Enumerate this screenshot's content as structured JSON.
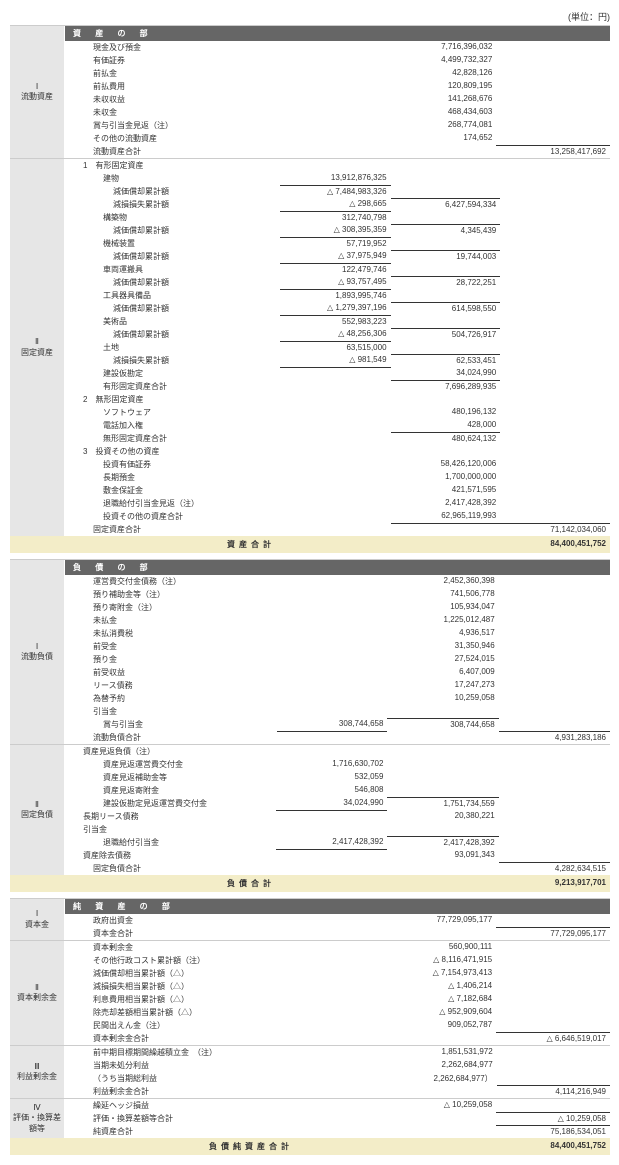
{
  "unit": "(単位：円)",
  "sections": {
    "assets_header": "資 産 の 部",
    "liab_header": "負 債 の 部",
    "net_header": "純 資 産 の 部",
    "current_assets": {
      "num": "Ⅰ",
      "label": "流動資産"
    },
    "fixed_assets": {
      "num": "Ⅱ",
      "label": "固定資産"
    },
    "current_liab": {
      "num": "Ⅰ",
      "label": "流動負債"
    },
    "fixed_liab": {
      "num": "Ⅱ",
      "label": "固定負債"
    },
    "capital": {
      "num": "Ⅰ",
      "label": "資本金"
    },
    "capital_surplus": {
      "num": "Ⅱ",
      "label": "資本剰余金"
    },
    "retained": {
      "num": "Ⅲ",
      "label": "利益剰余金"
    },
    "valuation": {
      "num": "Ⅳ",
      "label": "評価・換算差額等"
    }
  },
  "rows_assets_current": [
    {
      "l": "現金及び預金",
      "c2": "7,716,396,032"
    },
    {
      "l": "有価証券",
      "c2": "4,499,732,327"
    },
    {
      "l": "前払金",
      "c2": "42,828,126"
    },
    {
      "l": "前払費用",
      "c2": "120,809,195"
    },
    {
      "l": "未収収益",
      "c2": "141,268,676"
    },
    {
      "l": "未収金",
      "c2": "468,434,603"
    },
    {
      "l": "賞与引当金見返（注）",
      "c2": "268,774,081"
    },
    {
      "l": "その他の流動資産",
      "c2": "174,652"
    },
    {
      "l": "流動資産合計",
      "c3": "13,258,417,692",
      "ind": 1,
      "sub3": true
    }
  ],
  "rows_assets_fixed": [
    {
      "l": "1　有形固定資産",
      "ind": 0
    },
    {
      "l": "建物",
      "c1": "13,912,876,325",
      "ind": 2
    },
    {
      "l": "減価償却累計額",
      "c1": "△ 7,484,983,326",
      "ind": 3,
      "top1": true
    },
    {
      "l": "減損損失累計額",
      "c1": "△ 298,665",
      "c2": "6,427,594,334",
      "ind": 3,
      "u1": true,
      "sub2": true
    },
    {
      "l": "構築物",
      "c1": "312,740,798",
      "ind": 2
    },
    {
      "l": "減価償却累計額",
      "c1": "△ 308,395,359",
      "c2": "4,345,439",
      "ind": 3,
      "u1": true,
      "sub2": true
    },
    {
      "l": "機械装置",
      "c1": "57,719,952",
      "ind": 2
    },
    {
      "l": "減価償却累計額",
      "c1": "△ 37,975,949",
      "c2": "19,744,003",
      "ind": 3,
      "u1": true,
      "sub2": true
    },
    {
      "l": "車両運搬具",
      "c1": "122,479,746",
      "ind": 2
    },
    {
      "l": "減価償却累計額",
      "c1": "△ 93,757,495",
      "c2": "28,722,251",
      "ind": 3,
      "u1": true,
      "sub2": true
    },
    {
      "l": "工具器具備品",
      "c1": "1,893,995,746",
      "ind": 2
    },
    {
      "l": "減価償却累計額",
      "c1": "△ 1,279,397,196",
      "c2": "614,598,550",
      "ind": 3,
      "u1": true,
      "sub2": true
    },
    {
      "l": "美術品",
      "c1": "552,983,223",
      "ind": 2
    },
    {
      "l": "減価償却累計額",
      "c1": "△ 48,256,306",
      "c2": "504,726,917",
      "ind": 3,
      "u1": true,
      "sub2": true
    },
    {
      "l": "土地",
      "c1": "63,515,000",
      "ind": 2
    },
    {
      "l": "減損損失累計額",
      "c1": "△ 981,549",
      "c2": "62,533,451",
      "ind": 3,
      "u1": true,
      "sub2": true
    },
    {
      "l": "建設仮勘定",
      "c2": "34,024,990",
      "ind": 2
    },
    {
      "l": "有形固定資産合計",
      "c2": "7,696,289,935",
      "ind": 2,
      "sub2": true
    },
    {
      "l": "2　無形固定資産",
      "ind": 0
    },
    {
      "l": "ソフトウェア",
      "c2": "480,196,132",
      "ind": 2
    },
    {
      "l": "電話加入権",
      "c2": "428,000",
      "ind": 2
    },
    {
      "l": "無形固定資産合計",
      "c2": "480,624,132",
      "ind": 2,
      "sub2": true
    },
    {
      "l": "3　投資その他の資産",
      "ind": 0
    },
    {
      "l": "投資有価証券",
      "c2": "58,426,120,006",
      "ind": 2
    },
    {
      "l": "長期預金",
      "c2": "1,700,000,000",
      "ind": 2
    },
    {
      "l": "敷金保証金",
      "c2": "421,571,595",
      "ind": 2
    },
    {
      "l": "退職給付引当金見返（注）",
      "c2": "2,417,428,392",
      "ind": 2
    },
    {
      "l": "投資その他の資産合計",
      "c2": "62,965,119,993",
      "ind": 2,
      "u2": true
    },
    {
      "l": "固定資産合計",
      "c3": "71,142,034,060",
      "ind": 1,
      "sub3": true
    }
  ],
  "total_assets": {
    "l": "資産合計",
    "v": "84,400,451,752"
  },
  "rows_liab_current": [
    {
      "l": "運営費交付金債務（注）",
      "c2": "2,452,360,398"
    },
    {
      "l": "預り補助金等（注）",
      "c2": "741,506,778"
    },
    {
      "l": "預り寄附金（注）",
      "c2": "105,934,047"
    },
    {
      "l": "未払金",
      "c2": "1,225,012,487"
    },
    {
      "l": "未払消費税",
      "c2": "4,936,517"
    },
    {
      "l": "前受金",
      "c2": "31,350,946"
    },
    {
      "l": "預り金",
      "c2": "27,524,015"
    },
    {
      "l": "前受収益",
      "c2": "6,407,009"
    },
    {
      "l": "リース債務",
      "c2": "17,247,273"
    },
    {
      "l": "為替予約",
      "c2": "10,259,058"
    },
    {
      "l": "引当金",
      "ind": 1
    },
    {
      "l": "賞与引当金",
      "c1": "308,744,658",
      "c2": "308,744,658",
      "ind": 2,
      "u1": true,
      "sub2": true
    },
    {
      "l": "流動負債合計",
      "c3": "4,931,283,186",
      "ind": 1,
      "sub3": true
    }
  ],
  "rows_liab_fixed": [
    {
      "l": "資産見返負債（注）",
      "ind": 0
    },
    {
      "l": "資産見返運営費交付金",
      "c1": "1,716,630,702",
      "ind": 2
    },
    {
      "l": "資産見返補助金等",
      "c1": "532,059",
      "ind": 2
    },
    {
      "l": "資産見返寄附金",
      "c1": "546,808",
      "ind": 2
    },
    {
      "l": "建設仮勘定見返運営費交付金",
      "c1": "34,024,990",
      "c2": "1,751,734,559",
      "ind": 2,
      "u1": true,
      "sub2": true
    },
    {
      "l": "長期リース債務",
      "c2": "20,380,221",
      "ind": 0
    },
    {
      "l": "引当金",
      "ind": 0
    },
    {
      "l": "退職給付引当金",
      "c1": "2,417,428,392",
      "c2": "2,417,428,392",
      "ind": 2,
      "u1": true,
      "sub2": true
    },
    {
      "l": "資産除去債務",
      "c2": "93,091,343",
      "ind": 0
    },
    {
      "l": "固定負債合計",
      "c3": "4,282,634,515",
      "ind": 1,
      "sub3": true
    }
  ],
  "total_liab": {
    "l": "負債合計",
    "v": "9,213,917,701"
  },
  "rows_capital": [
    {
      "l": "政府出資金",
      "c2": "77,729,095,177"
    },
    {
      "l": "資本金合計",
      "c3": "77,729,095,177",
      "ind": 1,
      "sub3": true
    }
  ],
  "rows_capsurplus": [
    {
      "l": "資本剰余金",
      "c2": "560,900,111"
    },
    {
      "l": "その他行政コスト累計額（注）",
      "c2": "△ 8,116,471,915"
    },
    {
      "l": "減価償却相当累計額（△）",
      "c2": "△ 7,154,973,413",
      "ind": 1
    },
    {
      "l": "減損損失相当累計額（△）",
      "c2": "△ 1,406,214",
      "ind": 1
    },
    {
      "l": "利息費用相当累計額（△）",
      "c2": "△ 7,182,684",
      "ind": 1
    },
    {
      "l": "除売却差額相当累計額（△）",
      "c2": "△ 952,909,604",
      "ind": 1
    },
    {
      "l": "民間出えん金（注）",
      "c2": "909,052,787"
    },
    {
      "l": "資本剰余金合計",
      "c3": "△ 6,646,519,017",
      "ind": 1,
      "sub3": true
    }
  ],
  "rows_retained": [
    {
      "l": "前中期目標期間繰越積立金　（注）",
      "c2": "1,851,531,972"
    },
    {
      "l": "当期未処分利益",
      "c2": "2,262,684,977"
    },
    {
      "l": "（うち当期総利益",
      "c2": "2,262,684,977）",
      "ind": 1
    },
    {
      "l": "利益剰余金合計",
      "c3": "4,114,216,949",
      "ind": 1,
      "sub3": true
    }
  ],
  "rows_valuation": [
    {
      "l": "繰延ヘッジ損益",
      "c2": "△ 10,259,058"
    },
    {
      "l": "評価・換算差額等合計",
      "c3": "△ 10,259,058",
      "ind": 1,
      "sub3": true,
      "bot3": true
    },
    {
      "l": "純資産合計",
      "c3": "75,186,534,051",
      "ind": 1,
      "sub3": true
    }
  ],
  "total_netliab": {
    "l": "負債純資産合計",
    "v": "84,400,451,752"
  }
}
